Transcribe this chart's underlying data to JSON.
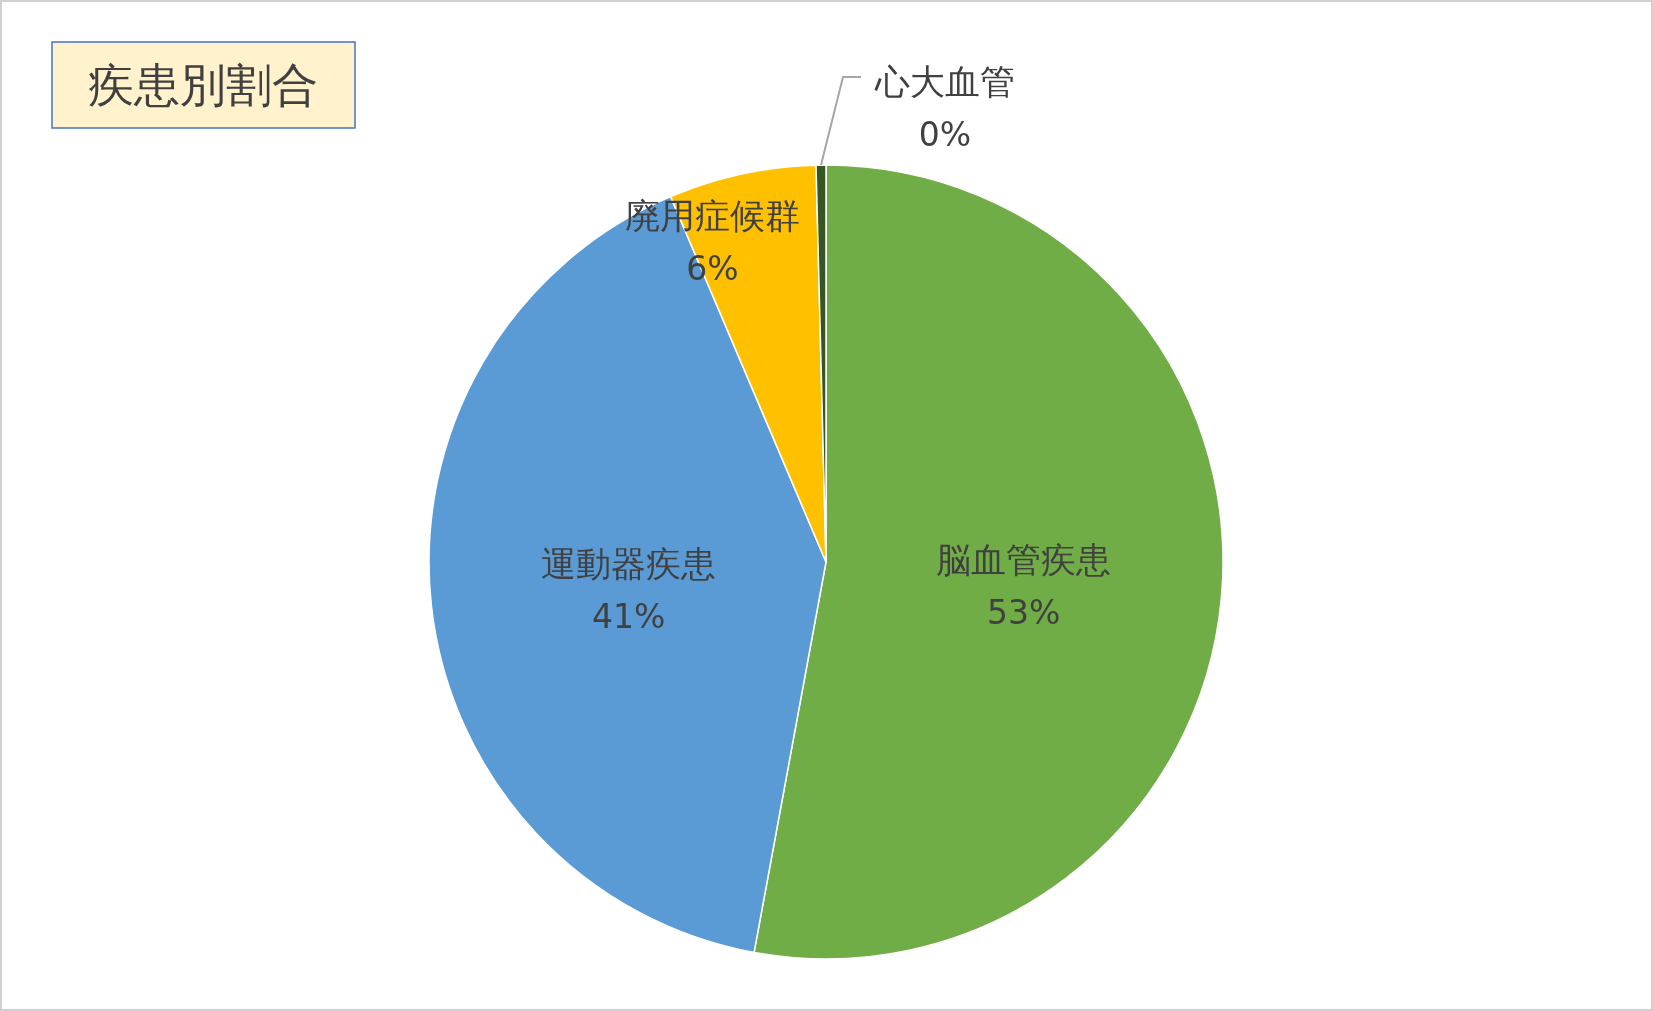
{
  "chart_data": {
    "type": "pie",
    "title": "疾患別割合",
    "categories": [
      "脳血管疾患",
      "運動器疾患",
      "廃用症候群",
      "心大血管"
    ],
    "values": [
      52.9,
      40.7,
      6.0,
      0.4
    ],
    "colors": [
      "#70ad47",
      "#5b9bd5",
      "#ffc000",
      "#375623"
    ],
    "value_labels": [
      "53%",
      "41%",
      "6%",
      "0%"
    ]
  }
}
